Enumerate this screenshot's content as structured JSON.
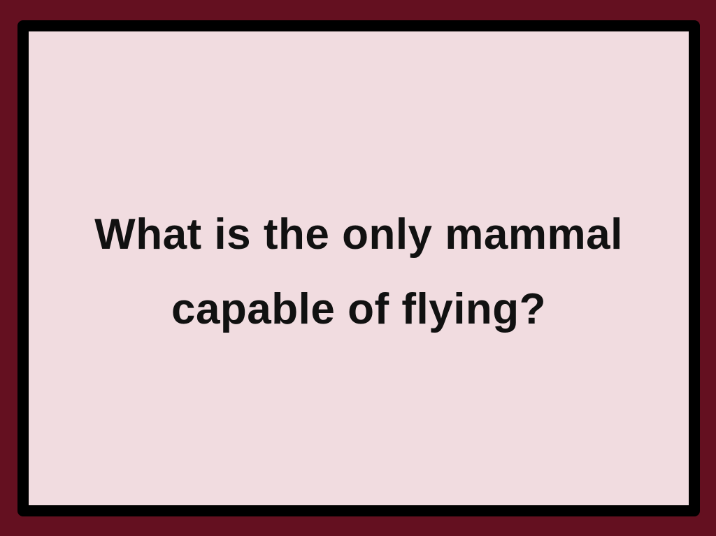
{
  "card": {
    "question": "What is the only mammal capable of flying?"
  },
  "colors": {
    "background": "#641020",
    "frame_border": "#000000",
    "card_fill": "#f1dce0",
    "text": "#111111"
  }
}
